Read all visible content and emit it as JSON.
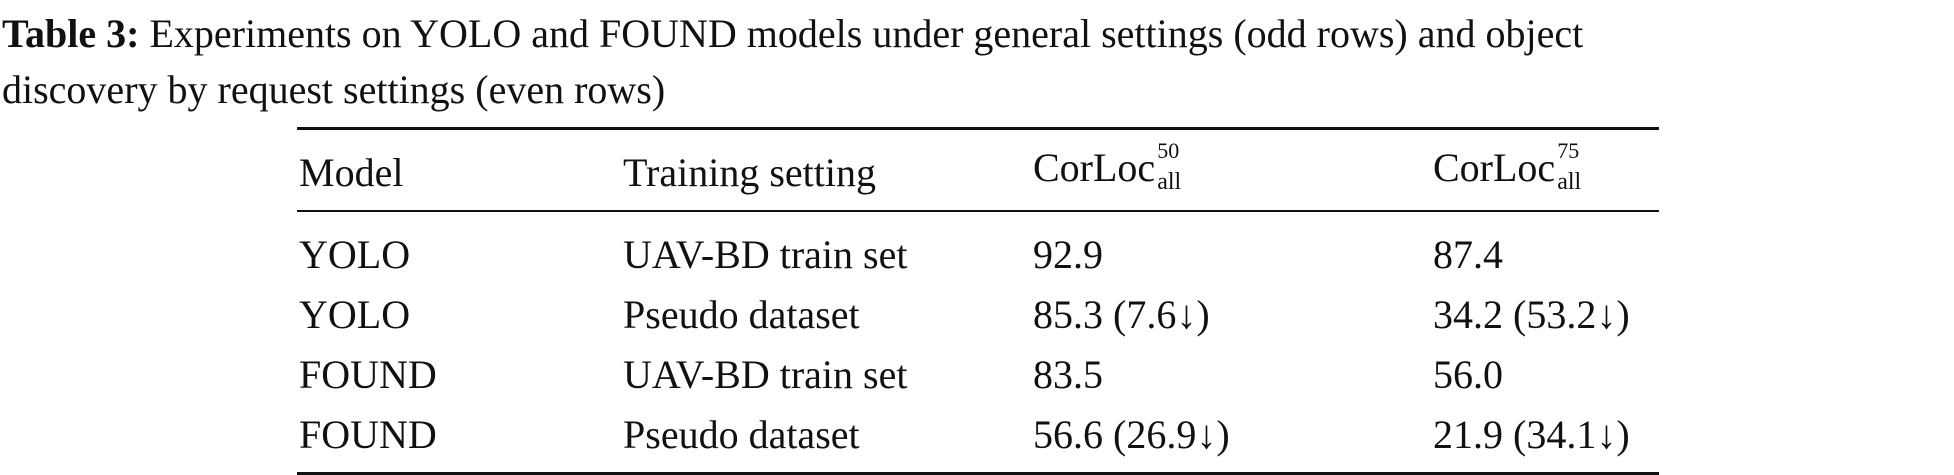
{
  "caption": {
    "label": "Table 3:",
    "line1_rest": " Experiments on YOLO and FOUND models under general settings (odd rows) and object",
    "line2": "discovery by request settings (even rows)"
  },
  "table": {
    "headers": {
      "model": "Model",
      "training_setting": "Training setting",
      "corloc50": {
        "base": "CorLoc",
        "sup": "50",
        "sub": "all"
      },
      "corloc75": {
        "base": "CorLoc",
        "sup": "75",
        "sub": "all"
      }
    },
    "rows": [
      {
        "model": "YOLO",
        "setting": "UAV-BD train set",
        "corloc50": "92.9",
        "corloc75": "87.4"
      },
      {
        "model": "YOLO",
        "setting": "Pseudo dataset",
        "corloc50": "85.3 (7.6↓)",
        "corloc75": "34.2 (53.2↓)"
      },
      {
        "model": "FOUND",
        "setting": "UAV-BD train set",
        "corloc50": "83.5",
        "corloc75": "56.0"
      },
      {
        "model": "FOUND",
        "setting": "Pseudo dataset",
        "corloc50": "56.6 (26.9↓)",
        "corloc75": "21.9 (34.1↓)"
      }
    ]
  }
}
